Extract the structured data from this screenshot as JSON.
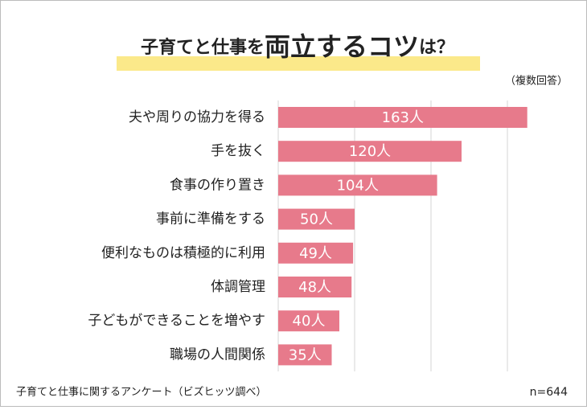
{
  "chart_data": {
    "type": "bar",
    "orientation": "horizontal",
    "title": [
      "子育てと仕事を",
      "両立するコツ",
      "は？"
    ],
    "note": "（複数回答）",
    "categories": [
      "夫や周りの協力を得る",
      "手を抜く",
      "食事の作り置き",
      "事前に準備をする",
      "便利なものは積極的に利用",
      "体調管理",
      "子どもができることを増やす",
      "職場の人間関係"
    ],
    "values": [
      163,
      120,
      104,
      50,
      49,
      48,
      40,
      35
    ],
    "value_labels": [
      "163人",
      "120人",
      "104人",
      "50人",
      "49人",
      "48人",
      "40人",
      "35人"
    ],
    "color": "#e77a8b",
    "xlim": [
      0,
      170
    ],
    "xticks": [
      0,
      50,
      100,
      150
    ],
    "grid": true,
    "source": "子育てと仕事に関するアンケート（ビズヒッツ調べ）",
    "sample_size": "n=644"
  }
}
